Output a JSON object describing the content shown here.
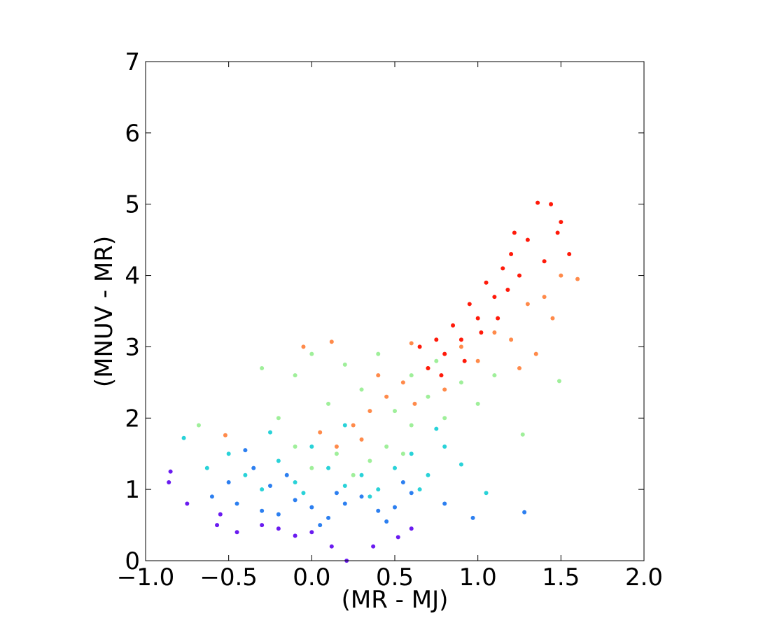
{
  "chart_data": {
    "type": "scatter",
    "x_label": "(MR - MJ)",
    "y_label": "(MNUV - MR)",
    "xlim": [
      -1.0,
      2.0
    ],
    "ylim": [
      0,
      7
    ],
    "xticks": [
      {
        "value": -1.0,
        "label": "−1.0"
      },
      {
        "value": -0.5,
        "label": "−0.5"
      },
      {
        "value": 0,
        "label": "0.0"
      },
      {
        "value": 0.5,
        "label": "0.5"
      },
      {
        "value": 1.0,
        "label": "1.0"
      },
      {
        "value": 1.5,
        "label": "1.5"
      },
      {
        "value": 2.0,
        "label": "2.0"
      }
    ],
    "yticks": [
      0,
      1,
      2,
      3,
      4,
      5,
      6,
      7
    ],
    "series": [
      {
        "color": "#6a1bf0",
        "x": [
          -0.85,
          -0.86,
          -0.75,
          -0.57,
          -0.45,
          -0.3,
          -0.1,
          0.12,
          0.37,
          0.52,
          0.21,
          -0.2,
          0.0,
          0.6,
          -0.55
        ],
        "values": [
          1.25,
          1.1,
          0.8,
          0.5,
          0.4,
          0.5,
          0.35,
          0.2,
          0.2,
          0.33,
          0.0,
          0.45,
          0.4,
          0.45,
          0.65
        ]
      },
      {
        "color": "#2c7ff0",
        "x": [
          -0.6,
          -0.5,
          -0.45,
          -0.35,
          -0.3,
          -0.2,
          -0.1,
          0.0,
          0.1,
          0.2,
          0.3,
          0.4,
          0.5,
          0.6,
          -0.25,
          0.15,
          0.55,
          1.28,
          0.97,
          -0.4,
          0.8,
          0.45,
          0.05,
          -0.15
        ],
        "values": [
          0.9,
          1.1,
          0.8,
          1.3,
          0.7,
          0.65,
          0.85,
          0.75,
          0.6,
          0.8,
          0.9,
          0.7,
          0.75,
          0.95,
          1.05,
          0.95,
          1.1,
          0.68,
          0.6,
          1.55,
          0.8,
          0.55,
          0.5,
          1.2
        ]
      },
      {
        "color": "#29d2d8",
        "x": [
          -0.77,
          -0.63,
          -0.5,
          -0.4,
          -0.3,
          -0.2,
          -0.1,
          0.0,
          0.1,
          0.2,
          0.3,
          0.4,
          0.5,
          0.6,
          0.7,
          0.8,
          0.9,
          1.05,
          -0.25,
          0.2,
          0.75,
          0.35,
          -0.05,
          0.65
        ],
        "values": [
          1.72,
          1.3,
          1.5,
          1.2,
          1.0,
          1.4,
          1.1,
          1.6,
          1.3,
          1.05,
          1.2,
          1.0,
          1.3,
          1.5,
          1.2,
          1.6,
          1.35,
          0.95,
          1.8,
          1.9,
          1.85,
          0.9,
          0.95,
          1.0
        ]
      },
      {
        "color": "#9fef9a",
        "x": [
          -0.68,
          -0.3,
          -0.1,
          0.0,
          0.2,
          0.1,
          0.3,
          0.4,
          0.5,
          0.6,
          0.7,
          0.8,
          0.9,
          1.0,
          1.1,
          1.27,
          1.49,
          -0.1,
          0.0,
          0.15,
          0.25,
          0.35,
          0.45,
          0.6,
          0.55,
          -0.2,
          0.75
        ],
        "values": [
          1.9,
          2.7,
          2.6,
          2.9,
          2.75,
          2.2,
          2.4,
          2.9,
          2.1,
          2.6,
          2.3,
          2.0,
          2.5,
          2.2,
          2.6,
          1.77,
          2.52,
          1.6,
          1.3,
          1.5,
          1.2,
          1.4,
          1.6,
          1.9,
          1.5,
          2.0,
          2.8
        ]
      },
      {
        "color": "#ff8a4a",
        "x": [
          -0.52,
          -0.05,
          0.12,
          0.05,
          0.15,
          0.25,
          0.35,
          0.45,
          0.55,
          0.62,
          0.7,
          0.8,
          0.9,
          1.0,
          1.1,
          1.2,
          1.3,
          1.4,
          1.5,
          1.6,
          1.45,
          1.35,
          0.3,
          0.4,
          0.6,
          1.25
        ],
        "values": [
          1.76,
          3.0,
          3.07,
          1.8,
          1.6,
          1.9,
          2.1,
          2.3,
          2.5,
          2.2,
          2.7,
          2.4,
          3.0,
          2.8,
          3.2,
          3.1,
          3.6,
          3.7,
          4.0,
          3.95,
          3.4,
          2.9,
          1.7,
          2.6,
          3.05,
          2.7
        ]
      },
      {
        "color": "#ff1a0a",
        "x": [
          0.7,
          0.75,
          0.8,
          0.85,
          0.9,
          0.95,
          1.0,
          1.05,
          1.1,
          1.15,
          1.2,
          1.25,
          1.3,
          1.36,
          1.44,
          1.5,
          1.4,
          1.48,
          0.65,
          0.78,
          0.92,
          1.02,
          1.12,
          1.22,
          1.18,
          1.55
        ],
        "values": [
          2.7,
          3.1,
          2.9,
          3.3,
          3.1,
          3.6,
          3.4,
          3.9,
          3.7,
          4.1,
          4.3,
          4.0,
          4.5,
          5.02,
          5.0,
          4.75,
          4.2,
          4.6,
          3.0,
          2.6,
          2.8,
          3.2,
          3.4,
          4.6,
          3.8,
          4.3
        ]
      }
    ]
  }
}
